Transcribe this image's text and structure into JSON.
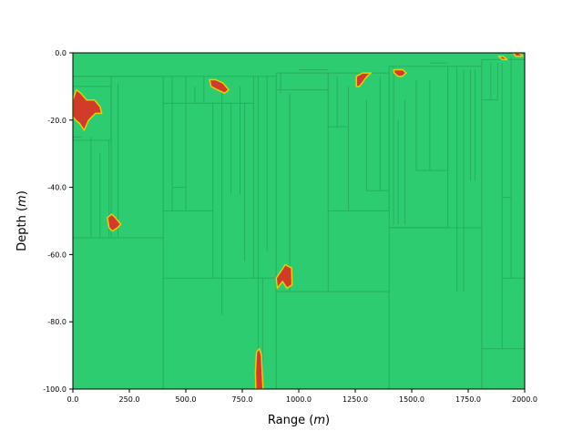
{
  "chart_data": {
    "type": "heatmap",
    "title": "",
    "xlabel": "Range",
    "xlabel_unit": "m",
    "ylabel": "Depth",
    "ylabel_unit": "m",
    "xlim": [
      0,
      2000
    ],
    "ylim": [
      -100,
      0
    ],
    "x_ticks": [
      0,
      250,
      500,
      750,
      1000,
      1250,
      1500,
      1750,
      2000
    ],
    "x_tick_labels": [
      "0.0",
      "250.0",
      "500.0",
      "750.0",
      "1000.0",
      "1250.0",
      "1500.0",
      "1750.0",
      "2000.0"
    ],
    "y_ticks": [
      0,
      -20,
      -40,
      -60,
      -80,
      -100
    ],
    "y_tick_labels": [
      "0.0",
      "-20.0",
      "-40.0",
      "-60.0",
      "-80.0",
      "-100.0"
    ],
    "grid": false,
    "legend": "none",
    "colors": {
      "background_medium": "#2ecc71",
      "cell_edges": "#27ae60",
      "anomaly_fill": "#d23a2a",
      "anomaly_edge": "#e6d000"
    },
    "regions": [
      {
        "x": [
          0,
          170
        ],
        "y": [
          -26,
          -7
        ]
      },
      {
        "x": [
          170,
          400
        ],
        "y": [
          -55,
          -7
        ]
      },
      {
        "x": [
          400,
          800
        ],
        "y": [
          -15,
          -7
        ]
      },
      {
        "x": [
          400,
          620
        ],
        "y": [
          -47,
          -15
        ]
      },
      {
        "x": [
          620,
          800
        ],
        "y": [
          -78,
          -15
        ]
      },
      {
        "x": [
          800,
          900
        ],
        "y": [
          -67,
          -7
        ]
      },
      {
        "x": [
          900,
          1130
        ],
        "y": [
          -71,
          -6
        ]
      },
      {
        "x": [
          1130,
          1400
        ],
        "y": [
          -47,
          -6
        ]
      },
      {
        "x": [
          1400,
          1660
        ],
        "y": [
          -52,
          -4
        ]
      },
      {
        "x": [
          1660,
          1810
        ],
        "y": [
          -71,
          -4
        ]
      },
      {
        "x": [
          1810,
          2000
        ],
        "y": [
          -88,
          -2
        ]
      },
      {
        "x": [
          0,
          400
        ],
        "y": [
          -100,
          -55
        ]
      },
      {
        "x": [
          400,
          900
        ],
        "y": [
          -100,
          -67
        ]
      },
      {
        "x": [
          900,
          1400
        ],
        "y": [
          -100,
          -71
        ]
      },
      {
        "x": [
          1400,
          1810
        ],
        "y": [
          -100,
          -52
        ]
      }
    ],
    "anomalies": [
      {
        "label": "anomaly-1",
        "points": [
          [
            0,
            -14
          ],
          [
            15,
            -11
          ],
          [
            35,
            -12
          ],
          [
            60,
            -14
          ],
          [
            95,
            -14
          ],
          [
            120,
            -16
          ],
          [
            128,
            -18
          ],
          [
            100,
            -18
          ],
          [
            70,
            -20
          ],
          [
            50,
            -23
          ],
          [
            30,
            -21
          ],
          [
            12,
            -20
          ],
          [
            0,
            -19
          ]
        ]
      },
      {
        "label": "anomaly-2",
        "points": [
          [
            153,
            -49
          ],
          [
            172,
            -48
          ],
          [
            188,
            -49
          ],
          [
            212,
            -51
          ],
          [
            198,
            -52
          ],
          [
            175,
            -53
          ],
          [
            160,
            -52
          ]
        ]
      },
      {
        "label": "anomaly-3",
        "points": [
          [
            605,
            -8
          ],
          [
            632,
            -8
          ],
          [
            665,
            -9
          ],
          [
            690,
            -11
          ],
          [
            672,
            -12
          ],
          [
            640,
            -11
          ],
          [
            612,
            -10
          ]
        ]
      },
      {
        "label": "anomaly-4",
        "points": [
          [
            813,
            -89
          ],
          [
            826,
            -88
          ],
          [
            835,
            -90
          ],
          [
            838,
            -95
          ],
          [
            842,
            -100
          ],
          [
            810,
            -100
          ],
          [
            808,
            -95
          ]
        ]
      },
      {
        "label": "anomaly-5",
        "points": [
          [
            900,
            -67
          ],
          [
            920,
            -65
          ],
          [
            940,
            -63
          ],
          [
            968,
            -64
          ],
          [
            970,
            -69
          ],
          [
            948,
            -70
          ],
          [
            928,
            -68
          ],
          [
            905,
            -70
          ]
        ]
      },
      {
        "label": "anomaly-6",
        "points": [
          [
            1255,
            -7
          ],
          [
            1282,
            -6
          ],
          [
            1320,
            -6
          ],
          [
            1302,
            -7
          ],
          [
            1280,
            -9
          ],
          [
            1268,
            -10
          ],
          [
            1255,
            -10
          ]
        ]
      },
      {
        "label": "anomaly-7",
        "points": [
          [
            1420,
            -5
          ],
          [
            1440,
            -5
          ],
          [
            1460,
            -5
          ],
          [
            1475,
            -6
          ],
          [
            1458,
            -7
          ],
          [
            1440,
            -7
          ],
          [
            1422,
            -6
          ]
        ]
      },
      {
        "label": "anomaly-8",
        "points": [
          [
            1885,
            -1
          ],
          [
            1905,
            -1
          ],
          [
            1922,
            -2
          ],
          [
            1900,
            -2
          ]
        ]
      },
      {
        "label": "anomaly-9",
        "points": [
          [
            1950,
            0
          ],
          [
            1975,
            0
          ],
          [
            1992,
            -1
          ],
          [
            1960,
            -1
          ]
        ]
      }
    ]
  }
}
